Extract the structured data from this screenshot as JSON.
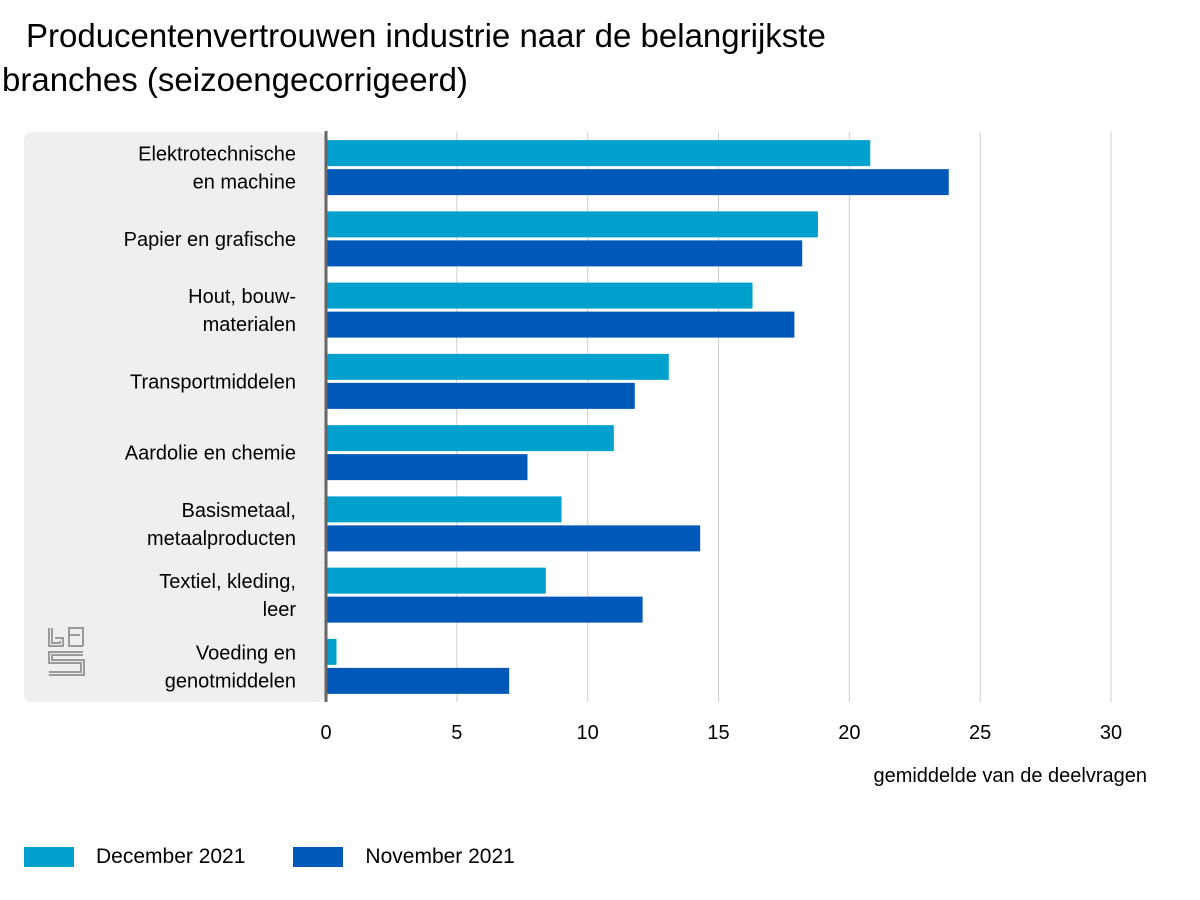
{
  "title_line1": "Producentenvertrouwen industrie naar de belangrijkste",
  "title_line2": "branches (seizoengecorrigeerd)",
  "chart_data": {
    "type": "bar",
    "orientation": "horizontal",
    "title": "Producentenvertrouwen industrie naar de belangrijkste branches (seizoengecorrigeerd)",
    "xlabel": "gemiddelde van de deelvragen",
    "xlim": [
      0,
      30
    ],
    "xticks": [
      0,
      5,
      10,
      15,
      20,
      25,
      30
    ],
    "grid": true,
    "legend_placement": "bottom-left",
    "categories": [
      [
        "Elektrotechnische",
        "en machine"
      ],
      [
        "Papier en grafische"
      ],
      [
        "Hout, bouw-",
        "materialen"
      ],
      [
        "Transportmiddelen"
      ],
      [
        "Aardolie en chemie"
      ],
      [
        "Basismetaal,",
        "metaalproducten"
      ],
      [
        "Textiel, kleding,",
        "leer"
      ],
      [
        "Voeding en",
        "genotmiddelen"
      ]
    ],
    "series": [
      {
        "name": "December 2021",
        "color": "#00a1cd",
        "values": [
          20.8,
          18.8,
          16.3,
          13.1,
          11.0,
          9.0,
          8.4,
          0.4
        ]
      },
      {
        "name": "November 2021",
        "color": "#0058b8",
        "values": [
          23.8,
          18.2,
          17.9,
          11.8,
          7.7,
          14.3,
          12.1,
          7.0
        ]
      }
    ]
  },
  "legend": [
    {
      "label": "December 2021",
      "color": "#00a1cd"
    },
    {
      "label": "November 2021",
      "color": "#0058b8"
    }
  ],
  "logo_icon": "cbs-logo-icon"
}
